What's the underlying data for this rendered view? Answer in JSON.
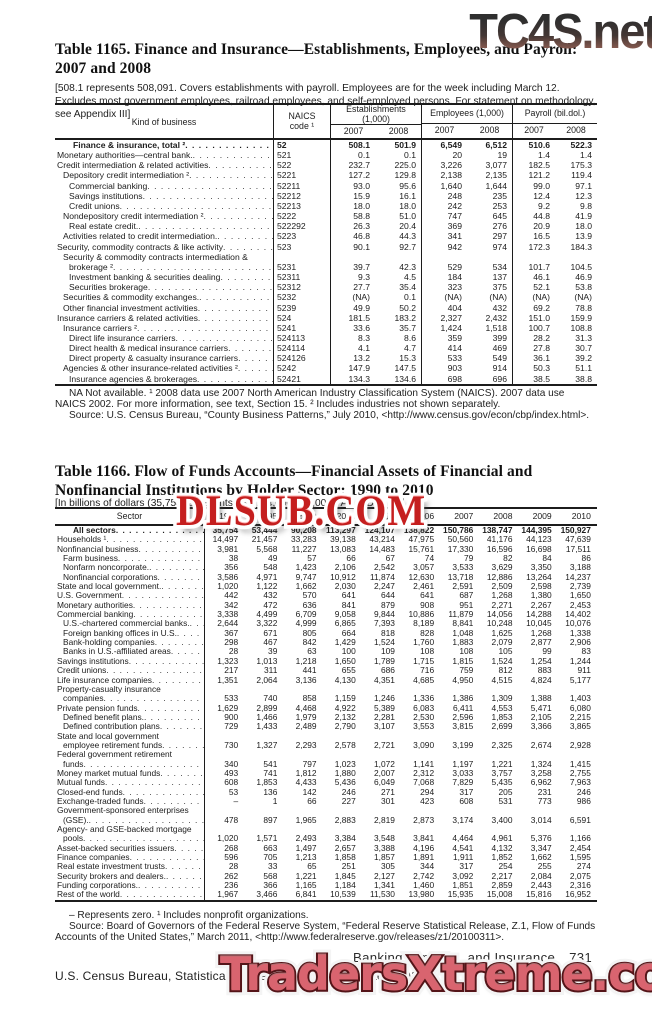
{
  "watermarks": {
    "top": "TC4S.net",
    "middle": "DLSUB.COM",
    "bottom": "TradersXtreme.com"
  },
  "colors": {
    "watermark_top": "#3a3a3a",
    "watermark_top_fade": "#96685c",
    "watermark_middle": "#c51f1f",
    "watermark_bottom": "#d9646f",
    "text": "#1c1c1c"
  },
  "table1165": {
    "title": [
      "Table 1165. Finance and Insurance—Establishments, Employees, and Payroll:",
      "2007 and 2008"
    ],
    "bracket_note": "[508.1 represents 508,091. Covers establishments with payroll. Employees are for the week including March 12. Excludes most government employees, railroad employees, and self-employed persons. For statement on methodology, see Appendix III]",
    "columns": {
      "kind": "Kind of business",
      "naics_line1": "NAICS",
      "naics_line2": "code ¹",
      "groups": [
        "Establishments\n(1,000)",
        "Employees (1,000)",
        "Payroll (bil.dol.)"
      ],
      "years": [
        "2007",
        "2008"
      ]
    },
    "rows": [
      {
        "l": "Finance & insurance, total ²",
        "i": 3,
        "b": true,
        "n": "52",
        "v": [
          "508.1",
          "501.9",
          "6,549",
          "6,512",
          "510.6",
          "522.3"
        ]
      },
      {
        "l": "Monetary authorities—central bank.",
        "i": 0,
        "n": "521",
        "v": [
          "0.1",
          "0.1",
          "20",
          "19",
          "1.4",
          "1.4"
        ]
      },
      {
        "l": "Credit intermediation & related activities",
        "i": 0,
        "n": "522",
        "v": [
          "232.7",
          "225.0",
          "3,226",
          "3,077",
          "182.5",
          "175.3"
        ]
      },
      {
        "l": "Depository credit intermediation ²",
        "i": 1,
        "n": "5221",
        "v": [
          "127.2",
          "129.8",
          "2,138",
          "2,135",
          "121.2",
          "119.4"
        ]
      },
      {
        "l": "Commercial banking",
        "i": 2,
        "n": "52211",
        "v": [
          "93.0",
          "95.6",
          "1,640",
          "1,644",
          "99.0",
          "97.1"
        ]
      },
      {
        "l": "Savings institutions",
        "i": 2,
        "n": "52212",
        "v": [
          "15.9",
          "16.1",
          "248",
          "235",
          "12.4",
          "12.3"
        ]
      },
      {
        "l": "Credit unions",
        "i": 2,
        "n": "52213",
        "v": [
          "18.0",
          "18.0",
          "242",
          "253",
          "9.2",
          "9.8"
        ]
      },
      {
        "l": "Nondepository credit intermediation ²",
        "i": 1,
        "n": "5222",
        "v": [
          "58.8",
          "51.0",
          "747",
          "645",
          "44.8",
          "41.9"
        ]
      },
      {
        "l": "Real estate credit.",
        "i": 2,
        "n": "522292",
        "v": [
          "26.3",
          "20.4",
          "369",
          "276",
          "20.9",
          "18.0"
        ]
      },
      {
        "l": "Activities related to credit intermediation.",
        "i": 1,
        "n": "5223",
        "v": [
          "46.8",
          "44.3",
          "341",
          "297",
          "16.5",
          "13.9"
        ]
      },
      {
        "l": "Security, commodity contracts & like activity",
        "i": 0,
        "n": "523",
        "v": [
          "90.1",
          "92.7",
          "942",
          "974",
          "172.3",
          "184.3"
        ]
      },
      {
        "l": "Security & commodity contracts intermediation &",
        "l2": "brokerage ²",
        "i": 1,
        "i2": 2,
        "n": "5231",
        "v": [
          "39.7",
          "42.3",
          "529",
          "534",
          "101.7",
          "104.5"
        ]
      },
      {
        "l": "Investment banking & securities dealing",
        "i": 2,
        "n": "52311",
        "v": [
          "9.3",
          "4.5",
          "184",
          "137",
          "46.1",
          "46.9"
        ]
      },
      {
        "l": "Securities brokerage",
        "i": 2,
        "n": "52312",
        "v": [
          "27.7",
          "35.4",
          "323",
          "375",
          "52.1",
          "53.8"
        ]
      },
      {
        "l": "Securities & commodity exchanges.",
        "i": 1,
        "n": "5232",
        "v": [
          "(NA)",
          "0.1",
          "(NA)",
          "(NA)",
          "(NA)",
          "(NA)"
        ]
      },
      {
        "l": "Other financial investment activities",
        "i": 1,
        "n": "5239",
        "v": [
          "49.9",
          "50.2",
          "404",
          "432",
          "69.2",
          "78.8"
        ]
      },
      {
        "l": "Insurance carriers & related activities",
        "i": 0,
        "n": "524",
        "v": [
          "181.5",
          "183.2",
          "2,327",
          "2,432",
          "151.0",
          "159.9"
        ]
      },
      {
        "l": "Insurance carriers ²",
        "i": 1,
        "n": "5241",
        "v": [
          "33.6",
          "35.7",
          "1,424",
          "1,518",
          "100.7",
          "108.8"
        ]
      },
      {
        "l": "Direct life insurance carriers",
        "i": 2,
        "n": "524113",
        "v": [
          "8.3",
          "8.6",
          "359",
          "399",
          "28.2",
          "31.3"
        ]
      },
      {
        "l": "Direct health & medical insurance carriers",
        "i": 2,
        "n": "524114",
        "v": [
          "4.1",
          "4.7",
          "414",
          "469",
          "27.8",
          "30.7"
        ]
      },
      {
        "l": "Direct property & casualty insurance carriers",
        "i": 2,
        "n": "524126",
        "v": [
          "13.2",
          "15.3",
          "533",
          "549",
          "36.1",
          "39.2"
        ]
      },
      {
        "l": "Agencies & other insurance-related activities ²",
        "i": 1,
        "n": "5242",
        "v": [
          "147.9",
          "147.5",
          "903",
          "914",
          "50.3",
          "51.1"
        ]
      },
      {
        "l": "Insurance agencies & brokerages",
        "i": 2,
        "n": "52421",
        "v": [
          "134.3",
          "134.6",
          "698",
          "696",
          "38.5",
          "38.8"
        ]
      }
    ],
    "footnote": "NA Not available. ¹ 2008 data use 2007 North American Industry Classification System (NAICS). 2007 data use NAICS 2002. For more information, see text, Section 15. ² Includes industries not shown separately.",
    "source": "Source: U.S. Census Bureau, “County Business Patterns,” July 2010, <http://www.census.gov/econ/cbp/index.html>."
  },
  "table1166": {
    "title": [
      "Table 1166. Flow of Funds Accounts—Financial Assets of Financial and",
      "Nonfinancial Institutions by Holder Sector: 1990 to 2010"
    ],
    "bracket_note": "[In billions of dollars (35,754 represents $35,754,000,000,000). As of Dec. 31]",
    "columns": {
      "sector": "Sector",
      "years": [
        "1990",
        "1995",
        "2000",
        "2004",
        "2005",
        "2006",
        "2007",
        "2008",
        "2009",
        "2010"
      ]
    },
    "rows": [
      {
        "l": "All sectors",
        "i": 3,
        "b": true,
        "v": [
          "35,754",
          "53,444",
          "90,208",
          "113,297",
          "124,107",
          "138,822",
          "150,786",
          "138,747",
          "144,395",
          "150,927"
        ]
      },
      {
        "l": "Households ¹",
        "i": 0,
        "v": [
          "14,497",
          "21,457",
          "33,283",
          "39,138",
          "43,214",
          "47,975",
          "50,560",
          "41,176",
          "44,123",
          "47,639"
        ]
      },
      {
        "l": "Nonfinancial business",
        "i": 0,
        "v": [
          "3,981",
          "5,568",
          "11,227",
          "13,083",
          "14,483",
          "15,761",
          "17,330",
          "16,596",
          "16,698",
          "17,511"
        ]
      },
      {
        "l": "Farm business",
        "i": 1,
        "v": [
          "38",
          "49",
          "57",
          "66",
          "67",
          "74",
          "79",
          "82",
          "84",
          "86"
        ]
      },
      {
        "l": "Nonfarm noncorporate.",
        "i": 1,
        "v": [
          "356",
          "548",
          "1,423",
          "2,106",
          "2,542",
          "3,057",
          "3,533",
          "3,629",
          "3,350",
          "3,188"
        ]
      },
      {
        "l": "Nonfinancial corporations",
        "i": 1,
        "v": [
          "3,586",
          "4,971",
          "9,747",
          "10,912",
          "11,874",
          "12,630",
          "13,718",
          "12,886",
          "13,264",
          "14,237"
        ]
      },
      {
        "l": "State and local government.",
        "i": 0,
        "v": [
          "1,020",
          "1,122",
          "1,662",
          "2,030",
          "2,247",
          "2,461",
          "2,591",
          "2,509",
          "2,598",
          "2,739"
        ]
      },
      {
        "l": "U.S. Government",
        "i": 0,
        "v": [
          "442",
          "432",
          "570",
          "641",
          "644",
          "641",
          "687",
          "1,268",
          "1,380",
          "1,650"
        ]
      },
      {
        "l": "Monetary authorities",
        "i": 0,
        "v": [
          "342",
          "472",
          "636",
          "841",
          "879",
          "908",
          "951",
          "2,271",
          "2,267",
          "2,453"
        ]
      },
      {
        "l": "Commercial banking",
        "i": 0,
        "v": [
          "3,338",
          "4,499",
          "6,709",
          "9,058",
          "9,844",
          "10,886",
          "11,879",
          "14,056",
          "14,288",
          "14,402"
        ]
      },
      {
        "l": "U.S.-chartered commercial banks.",
        "i": 1,
        "v": [
          "2,644",
          "3,322",
          "4,999",
          "6,865",
          "7,393",
          "8,189",
          "8,841",
          "10,248",
          "10,045",
          "10,076"
        ]
      },
      {
        "l": "Foreign banking offices in U.S.",
        "i": 1,
        "v": [
          "367",
          "671",
          "805",
          "664",
          "818",
          "828",
          "1,048",
          "1,625",
          "1,268",
          "1,338"
        ]
      },
      {
        "l": "Bank-holding companies",
        "i": 1,
        "v": [
          "298",
          "467",
          "842",
          "1,429",
          "1,524",
          "1,760",
          "1,883",
          "2,079",
          "2,877",
          "2,906"
        ]
      },
      {
        "l": "Banks in U.S.-affiliated areas",
        "i": 1,
        "v": [
          "28",
          "39",
          "63",
          "100",
          "109",
          "108",
          "108",
          "105",
          "99",
          "83"
        ]
      },
      {
        "l": "Savings institutions",
        "i": 0,
        "v": [
          "1,323",
          "1,013",
          "1,218",
          "1,650",
          "1,789",
          "1,715",
          "1,815",
          "1,524",
          "1,254",
          "1,244"
        ]
      },
      {
        "l": "Credit unions",
        "i": 0,
        "v": [
          "217",
          "311",
          "441",
          "655",
          "686",
          "716",
          "759",
          "812",
          "883",
          "911"
        ]
      },
      {
        "l": "Life insurance companies",
        "i": 0,
        "v": [
          "1,351",
          "2,064",
          "3,136",
          "4,130",
          "4,351",
          "4,685",
          "4,950",
          "4,515",
          "4,824",
          "5,177"
        ]
      },
      {
        "l": "Property-casualty insurance",
        "l2": "companies",
        "i": 0,
        "i2": 1,
        "v": [
          "533",
          "740",
          "858",
          "1,159",
          "1,246",
          "1,336",
          "1,386",
          "1,309",
          "1,388",
          "1,403"
        ]
      },
      {
        "l": "Private pension funds",
        "i": 0,
        "v": [
          "1,629",
          "2,899",
          "4,468",
          "4,922",
          "5,389",
          "6,083",
          "6,411",
          "4,553",
          "5,471",
          "6,080"
        ]
      },
      {
        "l": "Defined benefit plans.",
        "i": 1,
        "v": [
          "900",
          "1,466",
          "1,979",
          "2,132",
          "2,281",
          "2,530",
          "2,596",
          "1,853",
          "2,105",
          "2,215"
        ]
      },
      {
        "l": "Defined contribution plans",
        "i": 1,
        "v": [
          "729",
          "1,433",
          "2,489",
          "2,790",
          "3,107",
          "3,553",
          "3,815",
          "2,699",
          "3,366",
          "3,865"
        ]
      },
      {
        "l": "State and local government",
        "l2": "employee retirement funds",
        "i": 0,
        "i2": 1,
        "v": [
          "730",
          "1,327",
          "2,293",
          "2,578",
          "2,721",
          "3,090",
          "3,199",
          "2,325",
          "2,674",
          "2,928"
        ]
      },
      {
        "l": "Federal government retirement",
        "l2": "funds",
        "i": 0,
        "i2": 1,
        "v": [
          "340",
          "541",
          "797",
          "1,023",
          "1,072",
          "1,141",
          "1,197",
          "1,221",
          "1,324",
          "1,415"
        ]
      },
      {
        "l": "Money market mutual funds",
        "i": 0,
        "v": [
          "493",
          "741",
          "1,812",
          "1,880",
          "2,007",
          "2,312",
          "3,033",
          "3,757",
          "3,258",
          "2,755"
        ]
      },
      {
        "l": "Mutual funds",
        "i": 0,
        "v": [
          "608",
          "1,853",
          "4,433",
          "5,436",
          "6,049",
          "7,068",
          "7,829",
          "5,435",
          "6,962",
          "7,963"
        ]
      },
      {
        "l": "Closed-end funds",
        "i": 0,
        "v": [
          "53",
          "136",
          "142",
          "246",
          "271",
          "294",
          "317",
          "205",
          "231",
          "246"
        ]
      },
      {
        "l": "Exchange-traded funds",
        "i": 0,
        "v": [
          "–",
          "1",
          "66",
          "227",
          "301",
          "423",
          "608",
          "531",
          "773",
          "986"
        ]
      },
      {
        "l": "Government-sponsored enterprises",
        "l2": "(GSE).",
        "i": 0,
        "i2": 1,
        "v": [
          "478",
          "897",
          "1,965",
          "2,883",
          "2,819",
          "2,873",
          "3,174",
          "3,400",
          "3,014",
          "6,591"
        ]
      },
      {
        "l": "Agency- and GSE-backed mortgage",
        "l2": "pools",
        "i": 0,
        "i2": 1,
        "v": [
          "1,020",
          "1,571",
          "2,493",
          "3,384",
          "3,548",
          "3,841",
          "4,464",
          "4,961",
          "5,376",
          "1,166"
        ]
      },
      {
        "l": "Asset-backed securities issuers",
        "i": 0,
        "v": [
          "268",
          "663",
          "1,497",
          "2,657",
          "3,388",
          "4,196",
          "4,541",
          "4,132",
          "3,347",
          "2,454"
        ]
      },
      {
        "l": "Finance companies",
        "i": 0,
        "v": [
          "596",
          "705",
          "1,213",
          "1,858",
          "1,857",
          "1,891",
          "1,911",
          "1,852",
          "1,662",
          "1,595"
        ]
      },
      {
        "l": "Real estate investment trusts",
        "i": 0,
        "v": [
          "28",
          "33",
          "65",
          "251",
          "305",
          "344",
          "317",
          "254",
          "255",
          "274"
        ]
      },
      {
        "l": "Security brokers and dealers.",
        "i": 0,
        "v": [
          "262",
          "568",
          "1,221",
          "1,845",
          "2,127",
          "2,742",
          "3,092",
          "2,217",
          "2,084",
          "2,075"
        ]
      },
      {
        "l": "Funding corporations.",
        "i": 0,
        "v": [
          "236",
          "366",
          "1,165",
          "1,184",
          "1,341",
          "1,460",
          "1,851",
          "2,859",
          "2,443",
          "2,316"
        ]
      },
      {
        "l": "Rest of the world",
        "i": 0,
        "v": [
          "1,967",
          "3,466",
          "6,841",
          "10,539",
          "11,530",
          "13,980",
          "15,935",
          "15,008",
          "15,816",
          "16,952"
        ]
      }
    ],
    "footnote": "– Represents zero. ¹ Includes nonprofit organizations.",
    "source": "Source: Board of Governors of the Federal Reserve System, “Federal Reserve Statistical Release, Z.1, Flow of Funds Accounts of the United States,” March 2011, <http://www.federalreserve.gov/releases/z1/20100311>."
  },
  "page_footer": {
    "section": "Banking, Finance, and Insurance",
    "page": "731",
    "credit": "U.S. Census Bureau, Statistical Abstract of the United States: 2012"
  }
}
